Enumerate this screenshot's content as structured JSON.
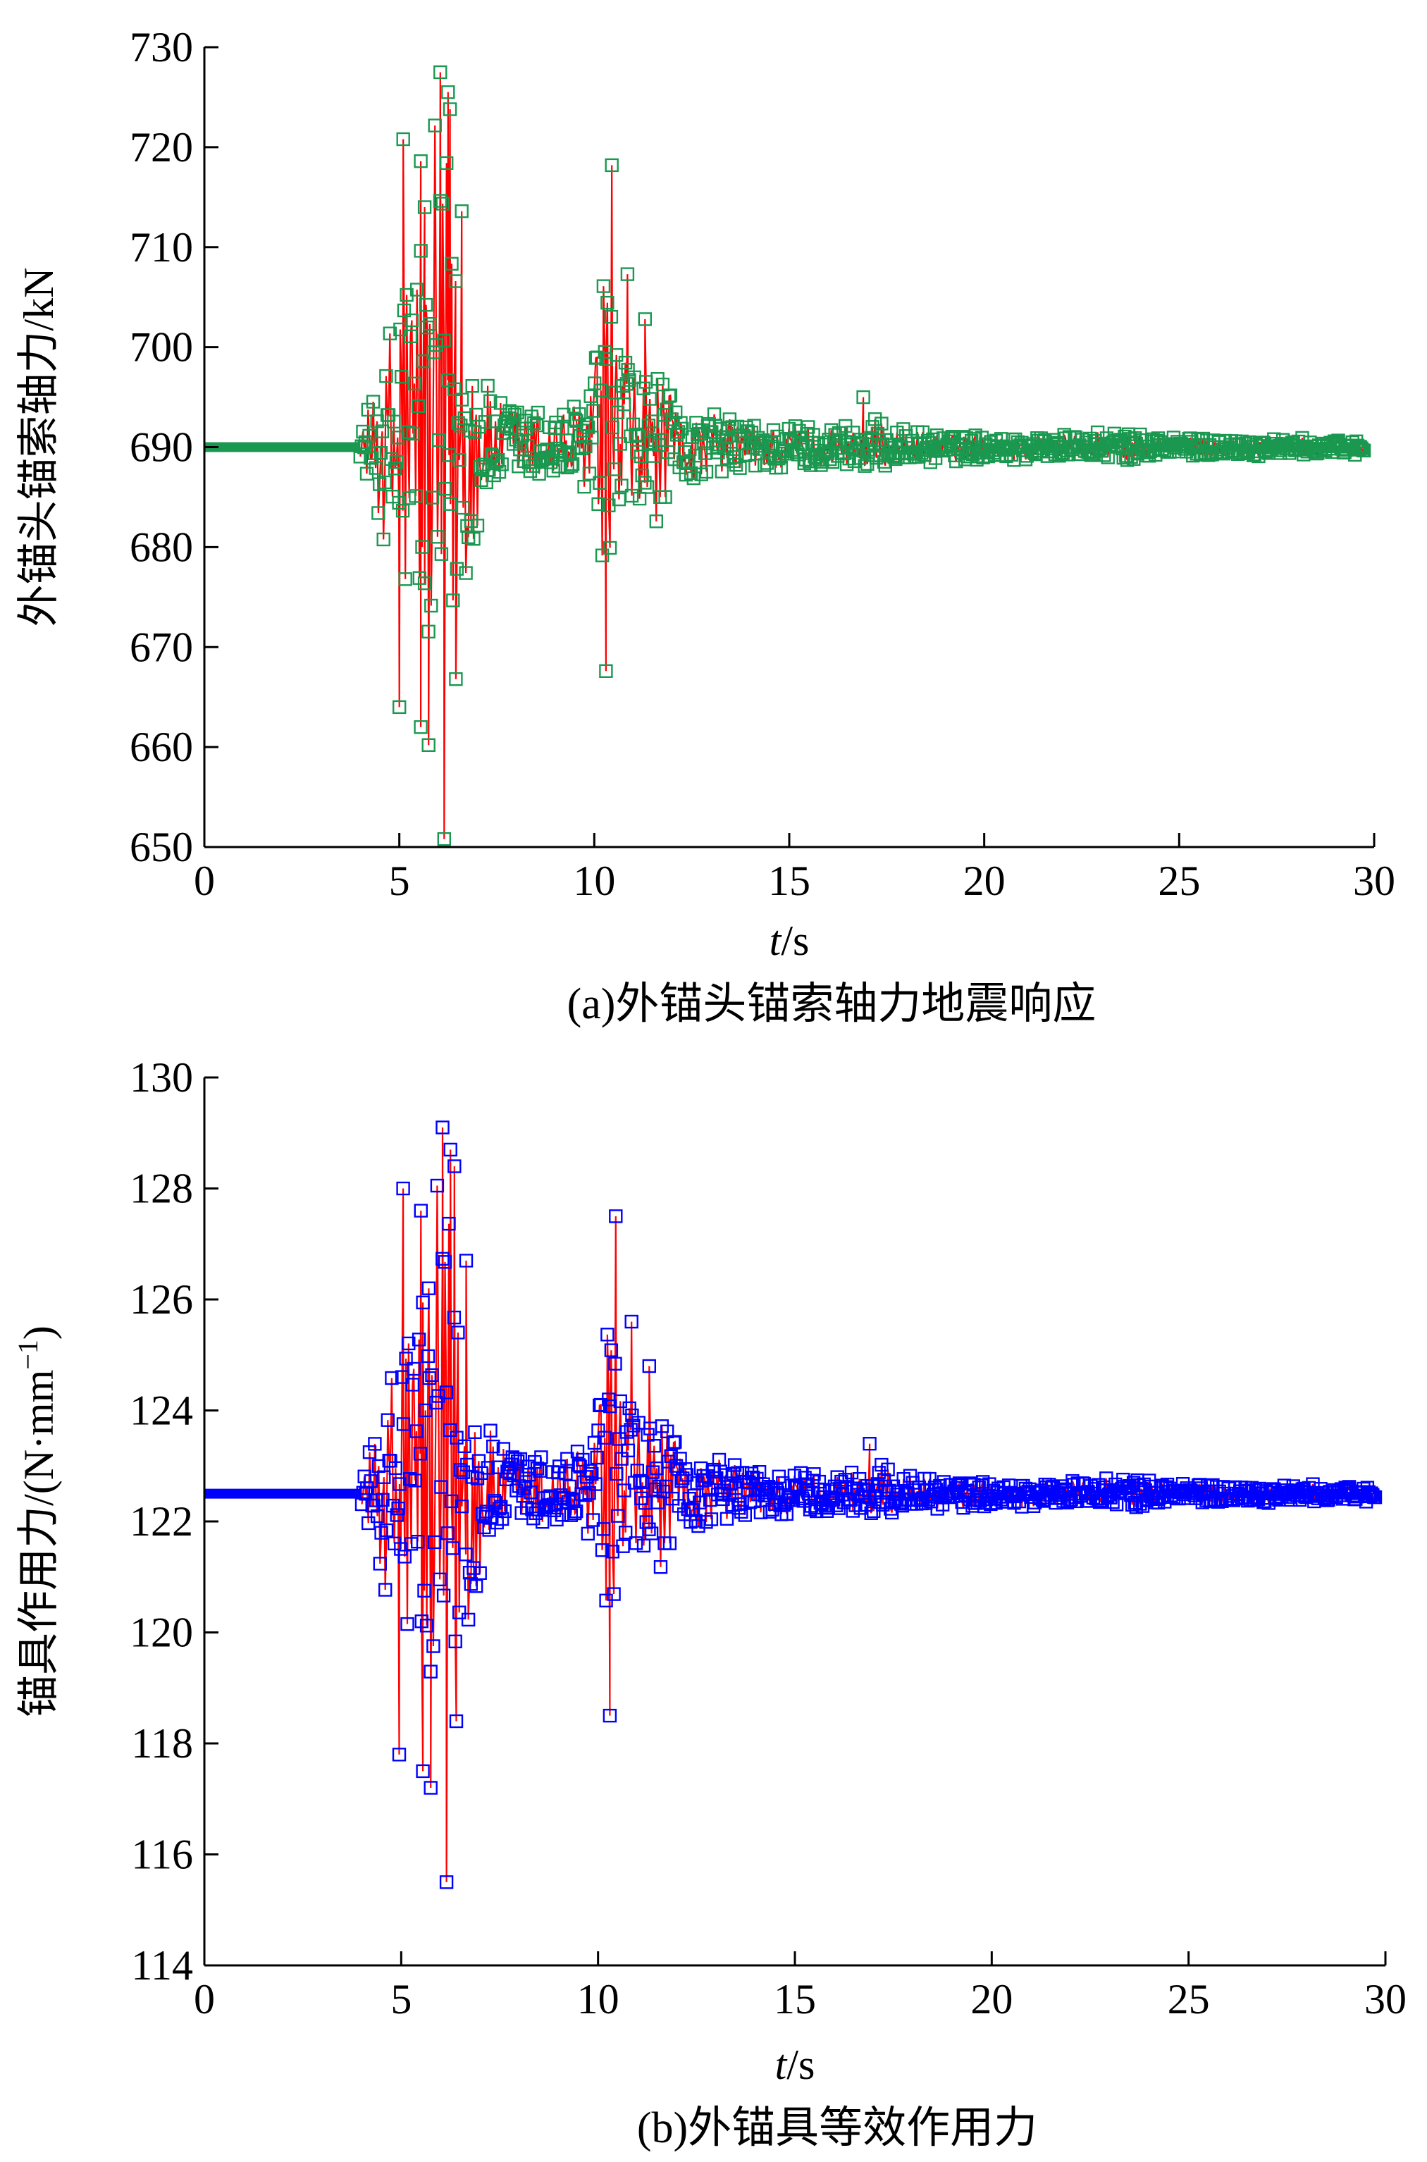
{
  "chart_data": [
    {
      "type": "scatter",
      "panel": "a",
      "caption": "(a)外锚头锚索轴力地震响应",
      "ylabel": "外锚头锚索轴力/kN",
      "xlabel_var": "t",
      "xlabel_unit": "/s",
      "xlim": [
        0,
        30
      ],
      "ylim": [
        650,
        730
      ],
      "xticks": [
        "0",
        "5",
        "10",
        "15",
        "20",
        "25",
        "30"
      ],
      "yticks": [
        "650",
        "660",
        "670",
        "680",
        "690",
        "700",
        "710",
        "720",
        "730"
      ],
      "grid": false,
      "baseline_value": 690,
      "static_until_t": 4.0,
      "series": [
        {
          "marker": "open-square",
          "color": "#1a9850",
          "line_color": "#ff0000"
        }
      ],
      "envelope": [
        [
          4.0,
          1.0
        ],
        [
          4.3,
          6
        ],
        [
          4.7,
          14
        ],
        [
          5.0,
          28
        ],
        [
          5.4,
          26
        ],
        [
          5.8,
          30
        ],
        [
          6.2,
          38
        ],
        [
          6.6,
          20
        ],
        [
          7.2,
          7
        ],
        [
          8.0,
          5
        ],
        [
          9.0,
          4
        ],
        [
          9.7,
          6
        ],
        [
          10.2,
          18
        ],
        [
          10.6,
          16
        ],
        [
          11.0,
          12
        ],
        [
          11.5,
          9
        ],
        [
          12.5,
          4
        ],
        [
          14.0,
          3
        ],
        [
          16.0,
          2.6
        ],
        [
          17.0,
          3.2
        ],
        [
          18.0,
          1.8
        ],
        [
          22.0,
          1.3
        ],
        [
          23.5,
          1.7
        ],
        [
          25.0,
          1.2
        ],
        [
          30.0,
          0.8
        ]
      ],
      "peaks": [
        [
          5.1,
          720.8
        ],
        [
          5.55,
          718.6
        ],
        [
          5.65,
          714.0
        ],
        [
          6.05,
          727.5
        ],
        [
          6.25,
          725.5
        ],
        [
          6.3,
          723.8
        ],
        [
          6.6,
          713.6
        ],
        [
          10.45,
          718.2
        ],
        [
          10.85,
          707.3
        ],
        [
          11.3,
          702.8
        ],
        [
          5.0,
          664.0
        ],
        [
          5.55,
          662.0
        ],
        [
          5.75,
          660.2
        ],
        [
          6.15,
          650.8
        ],
        [
          6.45,
          666.8
        ],
        [
          10.3,
          667.6
        ],
        [
          16.9,
          695.0
        ]
      ]
    },
    {
      "type": "scatter",
      "panel": "b",
      "caption": "(b)外锚具等效作用力",
      "ylabel": "锚具作用力/(N·mm",
      "ylabel_exp": "−1",
      "ylabel_close": ")",
      "xlabel_var": "t",
      "xlabel_unit": "/s",
      "xlim": [
        0,
        30
      ],
      "ylim": [
        114,
        130
      ],
      "xticks": [
        "0",
        "5",
        "10",
        "15",
        "20",
        "25",
        "30"
      ],
      "yticks": [
        "114",
        "116",
        "118",
        "120",
        "122",
        "124",
        "126",
        "128",
        "130"
      ],
      "grid": false,
      "baseline_value": 122.5,
      "static_until_t": 4.0,
      "series": [
        {
          "marker": "open-square",
          "color": "#0000ff",
          "line_color": "#ff0000"
        }
      ],
      "envelope": [
        [
          4.0,
          0.2
        ],
        [
          4.3,
          1.2
        ],
        [
          4.7,
          2.6
        ],
        [
          5.0,
          5.0
        ],
        [
          5.4,
          4.6
        ],
        [
          5.8,
          5.2
        ],
        [
          6.2,
          6.5
        ],
        [
          6.6,
          3.6
        ],
        [
          7.2,
          1.3
        ],
        [
          8.0,
          0.9
        ],
        [
          9.0,
          0.8
        ],
        [
          9.7,
          1.1
        ],
        [
          10.2,
          3.2
        ],
        [
          10.6,
          2.9
        ],
        [
          11.0,
          2.2
        ],
        [
          11.5,
          1.6
        ],
        [
          12.5,
          0.75
        ],
        [
          14.0,
          0.55
        ],
        [
          16.0,
          0.45
        ],
        [
          17.0,
          0.6
        ],
        [
          18.0,
          0.32
        ],
        [
          22.0,
          0.24
        ],
        [
          23.5,
          0.32
        ],
        [
          25.0,
          0.22
        ],
        [
          30.0,
          0.15
        ]
      ],
      "peaks": [
        [
          5.05,
          128.0
        ],
        [
          5.5,
          127.6
        ],
        [
          5.7,
          126.2
        ],
        [
          6.05,
          129.1
        ],
        [
          6.25,
          128.7
        ],
        [
          6.35,
          128.4
        ],
        [
          6.65,
          126.7
        ],
        [
          10.45,
          127.5
        ],
        [
          10.85,
          125.6
        ],
        [
          11.3,
          124.8
        ],
        [
          4.95,
          117.8
        ],
        [
          5.55,
          117.5
        ],
        [
          5.75,
          117.2
        ],
        [
          6.15,
          115.5
        ],
        [
          6.4,
          118.4
        ],
        [
          10.3,
          118.5
        ],
        [
          16.9,
          123.4
        ]
      ]
    }
  ]
}
